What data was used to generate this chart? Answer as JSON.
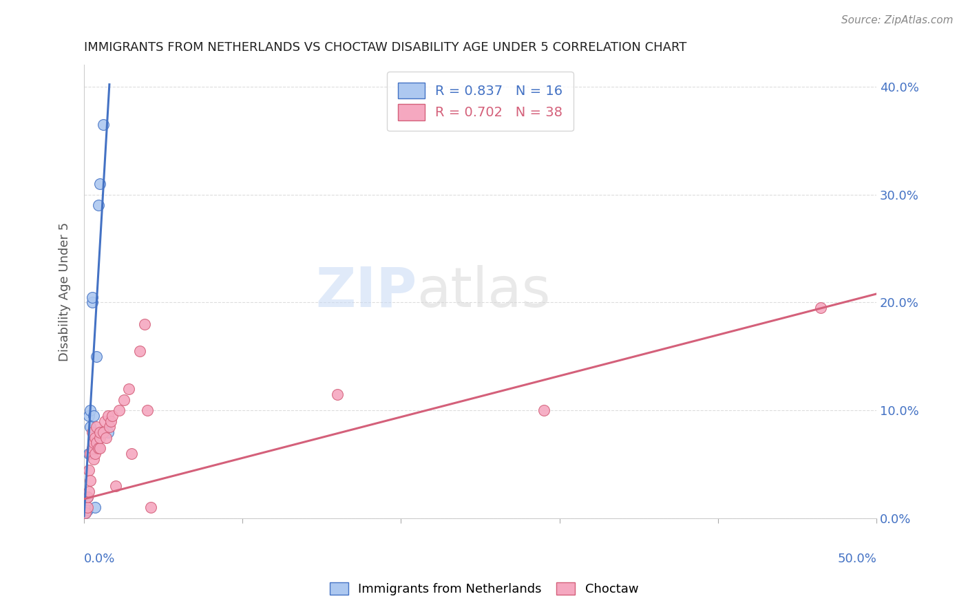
{
  "title": "IMMIGRANTS FROM NETHERLANDS VS CHOCTAW DISABILITY AGE UNDER 5 CORRELATION CHART",
  "source": "Source: ZipAtlas.com",
  "ylabel": "Disability Age Under 5",
  "ytick_values": [
    0.0,
    0.1,
    0.2,
    0.3,
    0.4
  ],
  "blue_R": 0.837,
  "blue_N": 16,
  "pink_R": 0.702,
  "pink_N": 38,
  "blue_color": "#adc8f0",
  "blue_line_color": "#4472c4",
  "pink_color": "#f5a8c0",
  "pink_line_color": "#d4607a",
  "blue_points_x": [
    0.001,
    0.002,
    0.002,
    0.003,
    0.003,
    0.004,
    0.004,
    0.005,
    0.005,
    0.006,
    0.007,
    0.008,
    0.009,
    0.01,
    0.012,
    0.015
  ],
  "blue_points_y": [
    0.005,
    0.008,
    0.02,
    0.095,
    0.06,
    0.085,
    0.1,
    0.2,
    0.205,
    0.095,
    0.01,
    0.15,
    0.29,
    0.31,
    0.365,
    0.08
  ],
  "pink_points_x": [
    0.001,
    0.002,
    0.002,
    0.003,
    0.003,
    0.004,
    0.004,
    0.005,
    0.005,
    0.006,
    0.006,
    0.007,
    0.007,
    0.008,
    0.008,
    0.009,
    0.01,
    0.01,
    0.01,
    0.012,
    0.013,
    0.014,
    0.015,
    0.016,
    0.017,
    0.018,
    0.02,
    0.022,
    0.025,
    0.028,
    0.03,
    0.035,
    0.038,
    0.04,
    0.042,
    0.16,
    0.29,
    0.465
  ],
  "pink_points_y": [
    0.005,
    0.01,
    0.02,
    0.025,
    0.045,
    0.035,
    0.06,
    0.065,
    0.08,
    0.055,
    0.07,
    0.06,
    0.075,
    0.07,
    0.085,
    0.065,
    0.065,
    0.075,
    0.08,
    0.08,
    0.09,
    0.075,
    0.095,
    0.085,
    0.09,
    0.095,
    0.03,
    0.1,
    0.11,
    0.12,
    0.06,
    0.155,
    0.18,
    0.1,
    0.01,
    0.115,
    0.1,
    0.195
  ],
  "blue_line_slope": 25.0,
  "blue_line_intercept": 0.002,
  "blue_line_xmax": 0.016,
  "pink_line_slope": 0.38,
  "pink_line_intercept": 0.018,
  "pink_line_xmax": 0.5,
  "xlim": [
    0.0,
    0.5
  ],
  "ylim": [
    0.0,
    0.42
  ],
  "background_color": "#ffffff",
  "grid_color": "#dddddd",
  "axis_label_color": "#4472c4",
  "title_color": "#222222"
}
